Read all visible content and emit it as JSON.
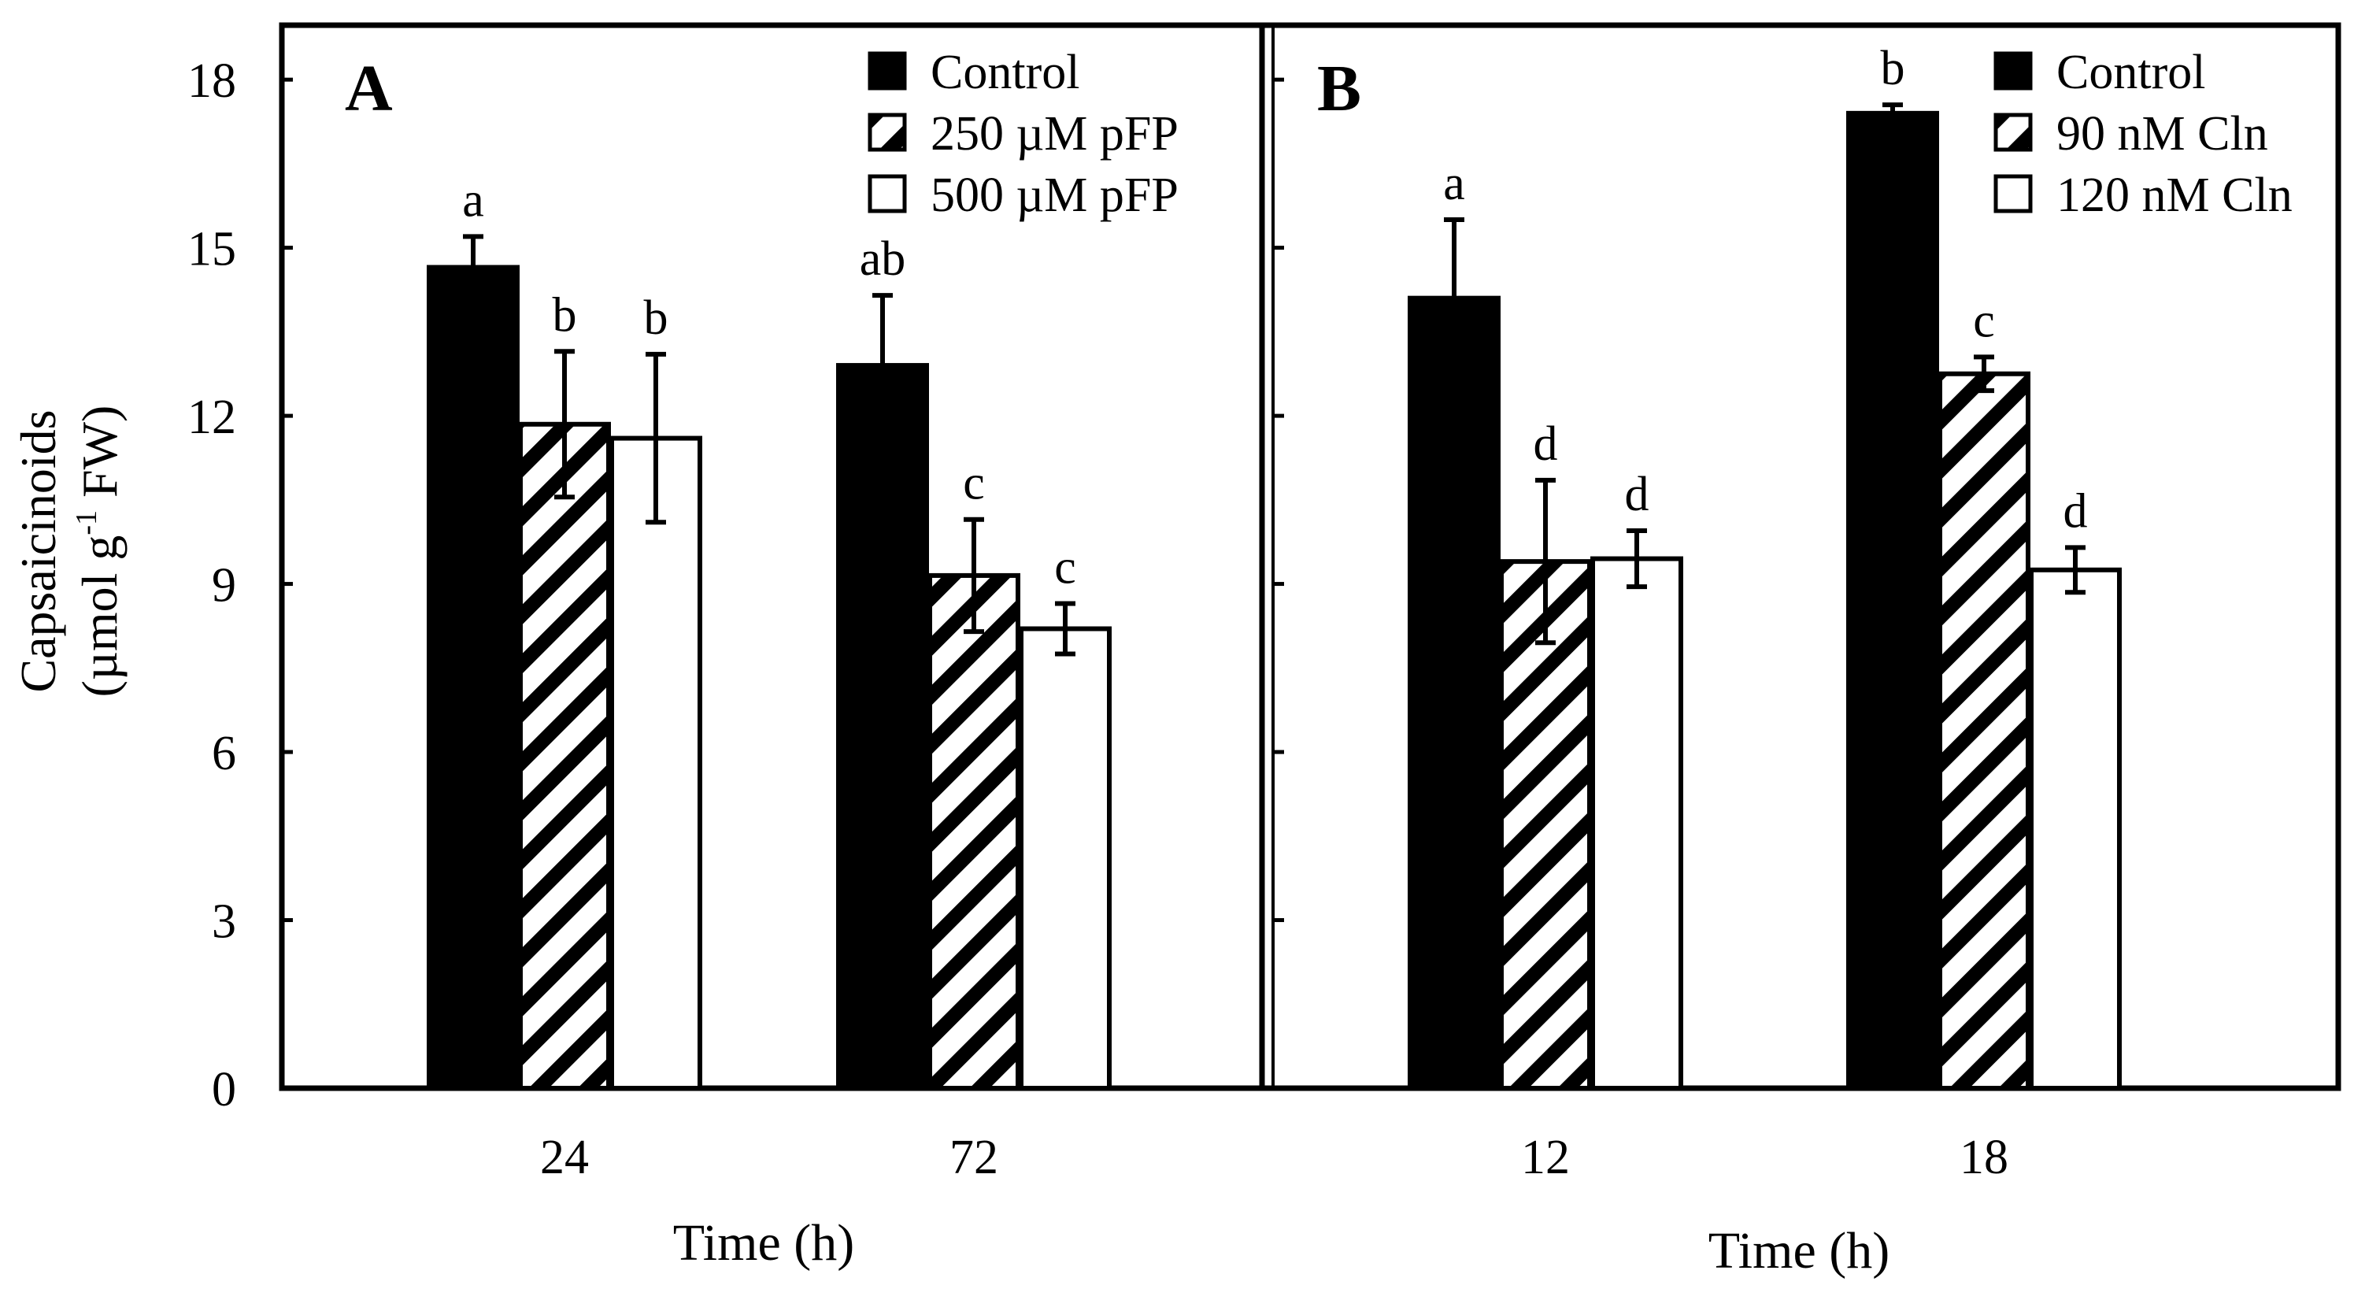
{
  "chart_data": {
    "type": "bar",
    "y_axis": {
      "label_line1": "Capsaicinoids",
      "label_line2_prefix": "(µmol g",
      "label_line2_sup": "-1",
      "label_line2_suffix": " FW)",
      "ylim": [
        0,
        19.0
      ],
      "ticks": [
        0,
        3,
        6,
        9,
        12,
        15,
        18
      ],
      "tick_labels": [
        "0",
        "3",
        "6",
        "9",
        "12",
        "15",
        "18"
      ]
    },
    "panels": [
      {
        "panel_label": "A",
        "xlabel": "Time (h)",
        "categories": [
          "24",
          "72"
        ],
        "series": [
          {
            "name": "Control",
            "fill": "solid",
            "values": [
              14.65,
              12.9
            ],
            "errors": [
              0.55,
              1.25
            ],
            "letters": [
              "a",
              "ab"
            ]
          },
          {
            "name": "250 µM pFP",
            "fill": "hatch",
            "values": [
              11.85,
              9.15
            ],
            "errors": [
              1.3,
              1.0
            ],
            "letters": [
              "b",
              "c"
            ]
          },
          {
            "name": "500 µM pFP",
            "fill": "open",
            "values": [
              11.6,
              8.2
            ],
            "errors": [
              1.5,
              0.45
            ],
            "letters": [
              "b",
              "c"
            ]
          }
        ]
      },
      {
        "panel_label": "B",
        "xlabel": "Time (h)",
        "categories": [
          "12",
          "18"
        ],
        "series": [
          {
            "name": "Control",
            "fill": "solid",
            "values": [
              14.1,
              17.4
            ],
            "errors": [
              1.4,
              0.15
            ],
            "letters": [
              "a",
              "b"
            ]
          },
          {
            "name": "90 nM Cln",
            "fill": "hatch",
            "values": [
              9.4,
              12.75
            ],
            "errors": [
              1.45,
              0.3
            ],
            "letters": [
              "d",
              "c"
            ]
          },
          {
            "name": "120 nM Cln",
            "fill": "open",
            "values": [
              9.45,
              9.25
            ],
            "errors": [
              0.5,
              0.4
            ],
            "letters": [
              "d",
              "d"
            ]
          }
        ]
      }
    ]
  }
}
